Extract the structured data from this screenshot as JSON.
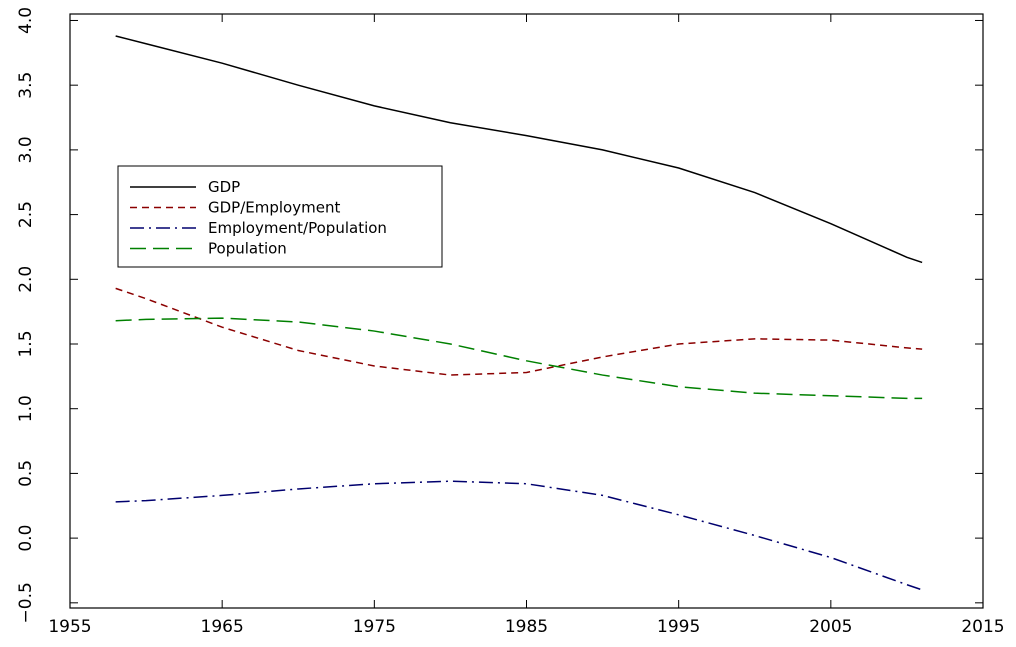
{
  "chart_data": {
    "type": "line",
    "x": [
      1958,
      1960,
      1965,
      1970,
      1975,
      1980,
      1985,
      1990,
      1995,
      2000,
      2005,
      2010,
      2011
    ],
    "series": [
      {
        "name": "GDP",
        "color": "#000000",
        "dash": "none",
        "values": [
          3.88,
          3.82,
          3.67,
          3.5,
          3.34,
          3.21,
          3.11,
          3.0,
          2.86,
          2.67,
          2.43,
          2.17,
          2.13
        ]
      },
      {
        "name": "GDP/Employment",
        "color": "#8b0000",
        "dash": "7 5",
        "values": [
          1.93,
          1.85,
          1.63,
          1.45,
          1.33,
          1.26,
          1.28,
          1.4,
          1.5,
          1.54,
          1.53,
          1.47,
          1.46
        ]
      },
      {
        "name": "Employment/Population",
        "color": "#00006e",
        "dash": "14 5 2 5",
        "values": [
          0.28,
          0.29,
          0.33,
          0.38,
          0.42,
          0.44,
          0.42,
          0.33,
          0.18,
          0.02,
          -0.15,
          -0.36,
          -0.4
        ]
      },
      {
        "name": "Population",
        "color": "#008000",
        "dash": "16 7",
        "values": [
          1.68,
          1.69,
          1.7,
          1.67,
          1.6,
          1.5,
          1.37,
          1.26,
          1.17,
          1.12,
          1.1,
          1.08,
          1.08
        ]
      }
    ],
    "xlim": [
      1955,
      2015
    ],
    "xticks": [
      1955,
      1965,
      1975,
      1985,
      1995,
      2005,
      2015
    ],
    "ylim": [
      -0.54,
      4.05
    ],
    "yticks": [
      {
        "value": -0.5,
        "label": "−0.5"
      },
      {
        "value": 0,
        "label": "0.0"
      },
      0.5,
      {
        "value": 1,
        "label": "1.0"
      },
      1.5,
      {
        "value": 2,
        "label": "2.0"
      },
      2.5,
      {
        "value": 3,
        "label": "3.0"
      },
      3.5,
      {
        "value": 4,
        "label": "4.0"
      }
    ]
  }
}
